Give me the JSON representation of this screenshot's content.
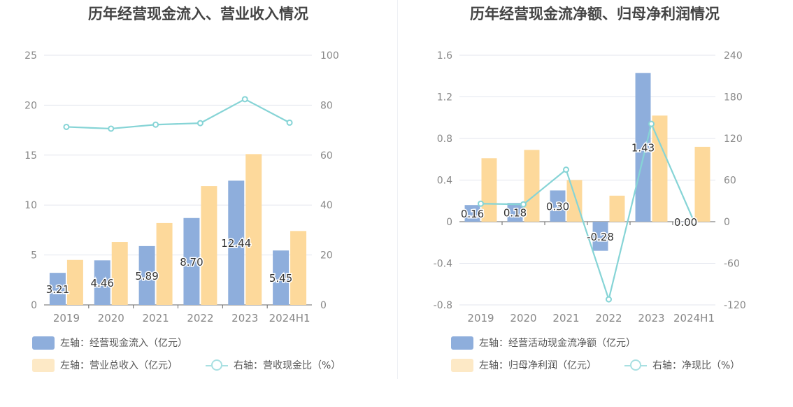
{
  "chart_data": [
    {
      "type": "bar",
      "title": "历年经营现金流入、营业收入情况",
      "categories": [
        "2019",
        "2020",
        "2021",
        "2022",
        "2023",
        "2024H1"
      ],
      "left_axis": {
        "ticks": [
          "0",
          "5",
          "10",
          "15",
          "20",
          "25"
        ],
        "ylim": [
          0,
          25
        ]
      },
      "right_axis": {
        "ticks": [
          "0",
          "20",
          "40",
          "60",
          "80",
          "100"
        ],
        "ylim": [
          0,
          100
        ]
      },
      "grid": true,
      "legend_position": "bottom",
      "series": [
        {
          "name": "左轴：经营现金流入（亿元）",
          "type": "bar",
          "axis": "left",
          "color": "#8eaedc",
          "values": [
            3.21,
            4.46,
            5.89,
            8.7,
            12.44,
            5.45
          ],
          "labels": [
            "3.21",
            "4.46",
            "5.89",
            "8.70",
            "12.44",
            "5.45"
          ]
        },
        {
          "name": "左轴：营业总收入（亿元）",
          "type": "bar",
          "axis": "left",
          "color": "#fdd99b",
          "values": [
            4.5,
            6.3,
            8.2,
            11.9,
            15.1,
            7.4
          ]
        },
        {
          "name": "右轴：营收现金比（%）",
          "type": "line",
          "axis": "right",
          "color": "#86d4d6",
          "values": [
            71.3,
            70.6,
            72.2,
            72.8,
            82.4,
            73.0
          ]
        }
      ]
    },
    {
      "type": "bar",
      "title": "历年经营现金流净额、归母净利润情况",
      "categories": [
        "2019",
        "2020",
        "2021",
        "2022",
        "2023",
        "2024H1"
      ],
      "left_axis": {
        "ticks": [
          "-0.8",
          "-0.4",
          "0",
          "0.4",
          "0.8",
          "1.2",
          "1.6"
        ],
        "ylim": [
          -0.8,
          1.6
        ]
      },
      "right_axis": {
        "ticks": [
          "-120",
          "-60",
          "0",
          "60",
          "120",
          "180",
          "240"
        ],
        "ylim": [
          -120,
          240
        ]
      },
      "grid": true,
      "legend_position": "bottom",
      "series": [
        {
          "name": "左轴：经营活动现金流净额（亿元）",
          "type": "bar",
          "axis": "left",
          "color": "#8eaedc",
          "values": [
            0.16,
            0.18,
            0.3,
            -0.28,
            1.43,
            0.0
          ],
          "labels": [
            "0.16",
            "0.18",
            "0.30",
            "-0.28",
            "1.43",
            "0.00"
          ]
        },
        {
          "name": "左轴：归母净利润（亿元）",
          "type": "bar",
          "axis": "left",
          "color": "#fdd99b",
          "values": [
            0.61,
            0.69,
            0.4,
            0.25,
            1.02,
            0.72
          ]
        },
        {
          "name": "右轴：净现比（%）",
          "type": "line",
          "axis": "right",
          "color": "#86d4d6",
          "values": [
            26,
            25,
            75,
            -112,
            141,
            0
          ]
        }
      ]
    }
  ]
}
